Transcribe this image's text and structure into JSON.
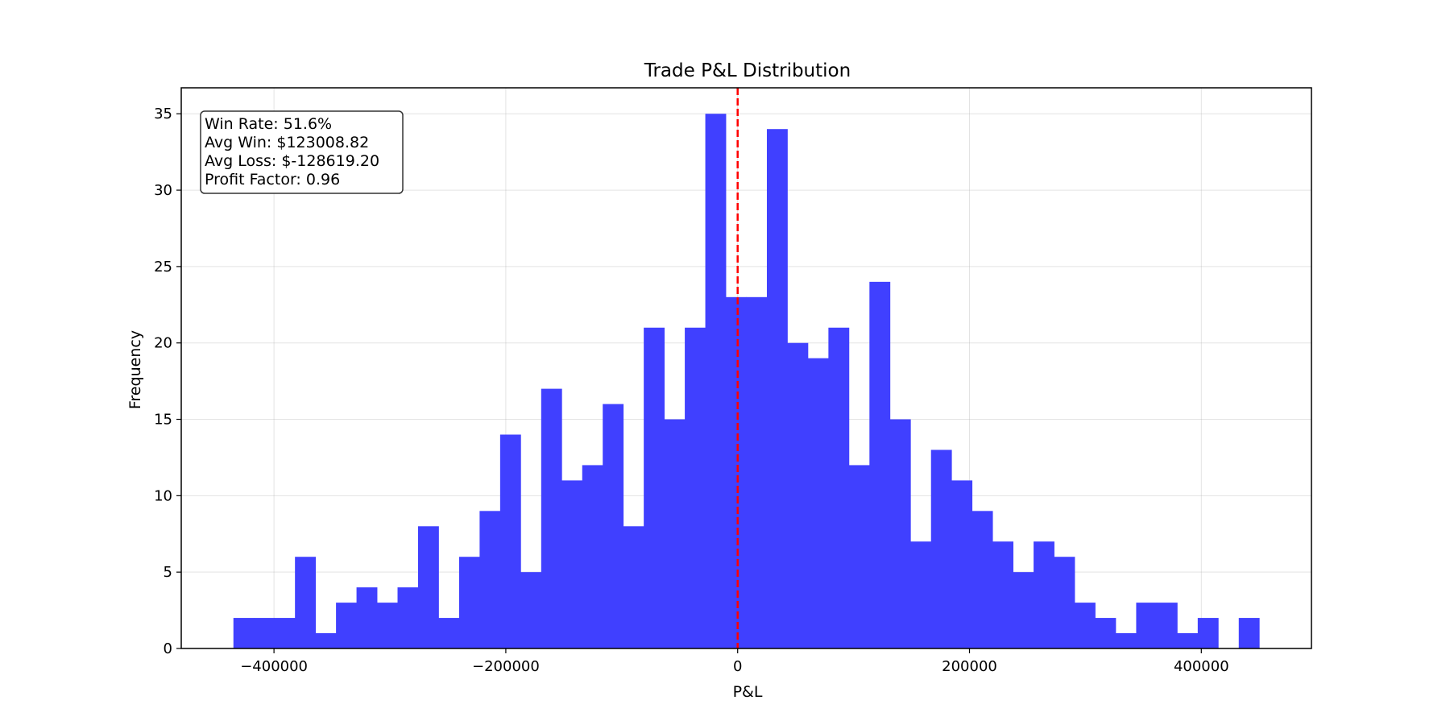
{
  "chart_data": {
    "type": "bar",
    "title": "Trade P&L Distribution",
    "xlabel": "P&L",
    "ylabel": "Frequency",
    "xlim": [
      -480000,
      495000
    ],
    "ylim": [
      0,
      36.7
    ],
    "x_ticks": [
      -400000,
      -200000,
      0,
      200000,
      400000
    ],
    "x_tick_labels": [
      "−400000",
      "−200000",
      "0",
      "200000",
      "400000"
    ],
    "y_ticks": [
      0,
      5,
      10,
      15,
      20,
      25,
      30,
      35
    ],
    "y_tick_labels": [
      "0",
      "5",
      "10",
      "15",
      "20",
      "25",
      "30",
      "35"
    ],
    "grid": true,
    "bar_color": "#4040ff",
    "bin_start": -435000,
    "bin_end": 450000,
    "counts": [
      2,
      2,
      2,
      6,
      1,
      3,
      4,
      3,
      4,
      8,
      2,
      6,
      9,
      14,
      5,
      17,
      11,
      12,
      16,
      8,
      21,
      15,
      21,
      35,
      23,
      23,
      34,
      20,
      19,
      21,
      12,
      24,
      15,
      7,
      13,
      11,
      9,
      7,
      5,
      7,
      6,
      3,
      2,
      1,
      3,
      3,
      1,
      2,
      0,
      2
    ],
    "reference_line": {
      "x": 0,
      "color": "#ff0000",
      "style": "dashed"
    },
    "stats_box": {
      "position": "top-left",
      "lines": [
        "Win Rate: 51.6%",
        "Avg Win: $123008.82",
        "Avg Loss: $-128619.20",
        "Profit Factor: 0.96"
      ]
    }
  }
}
